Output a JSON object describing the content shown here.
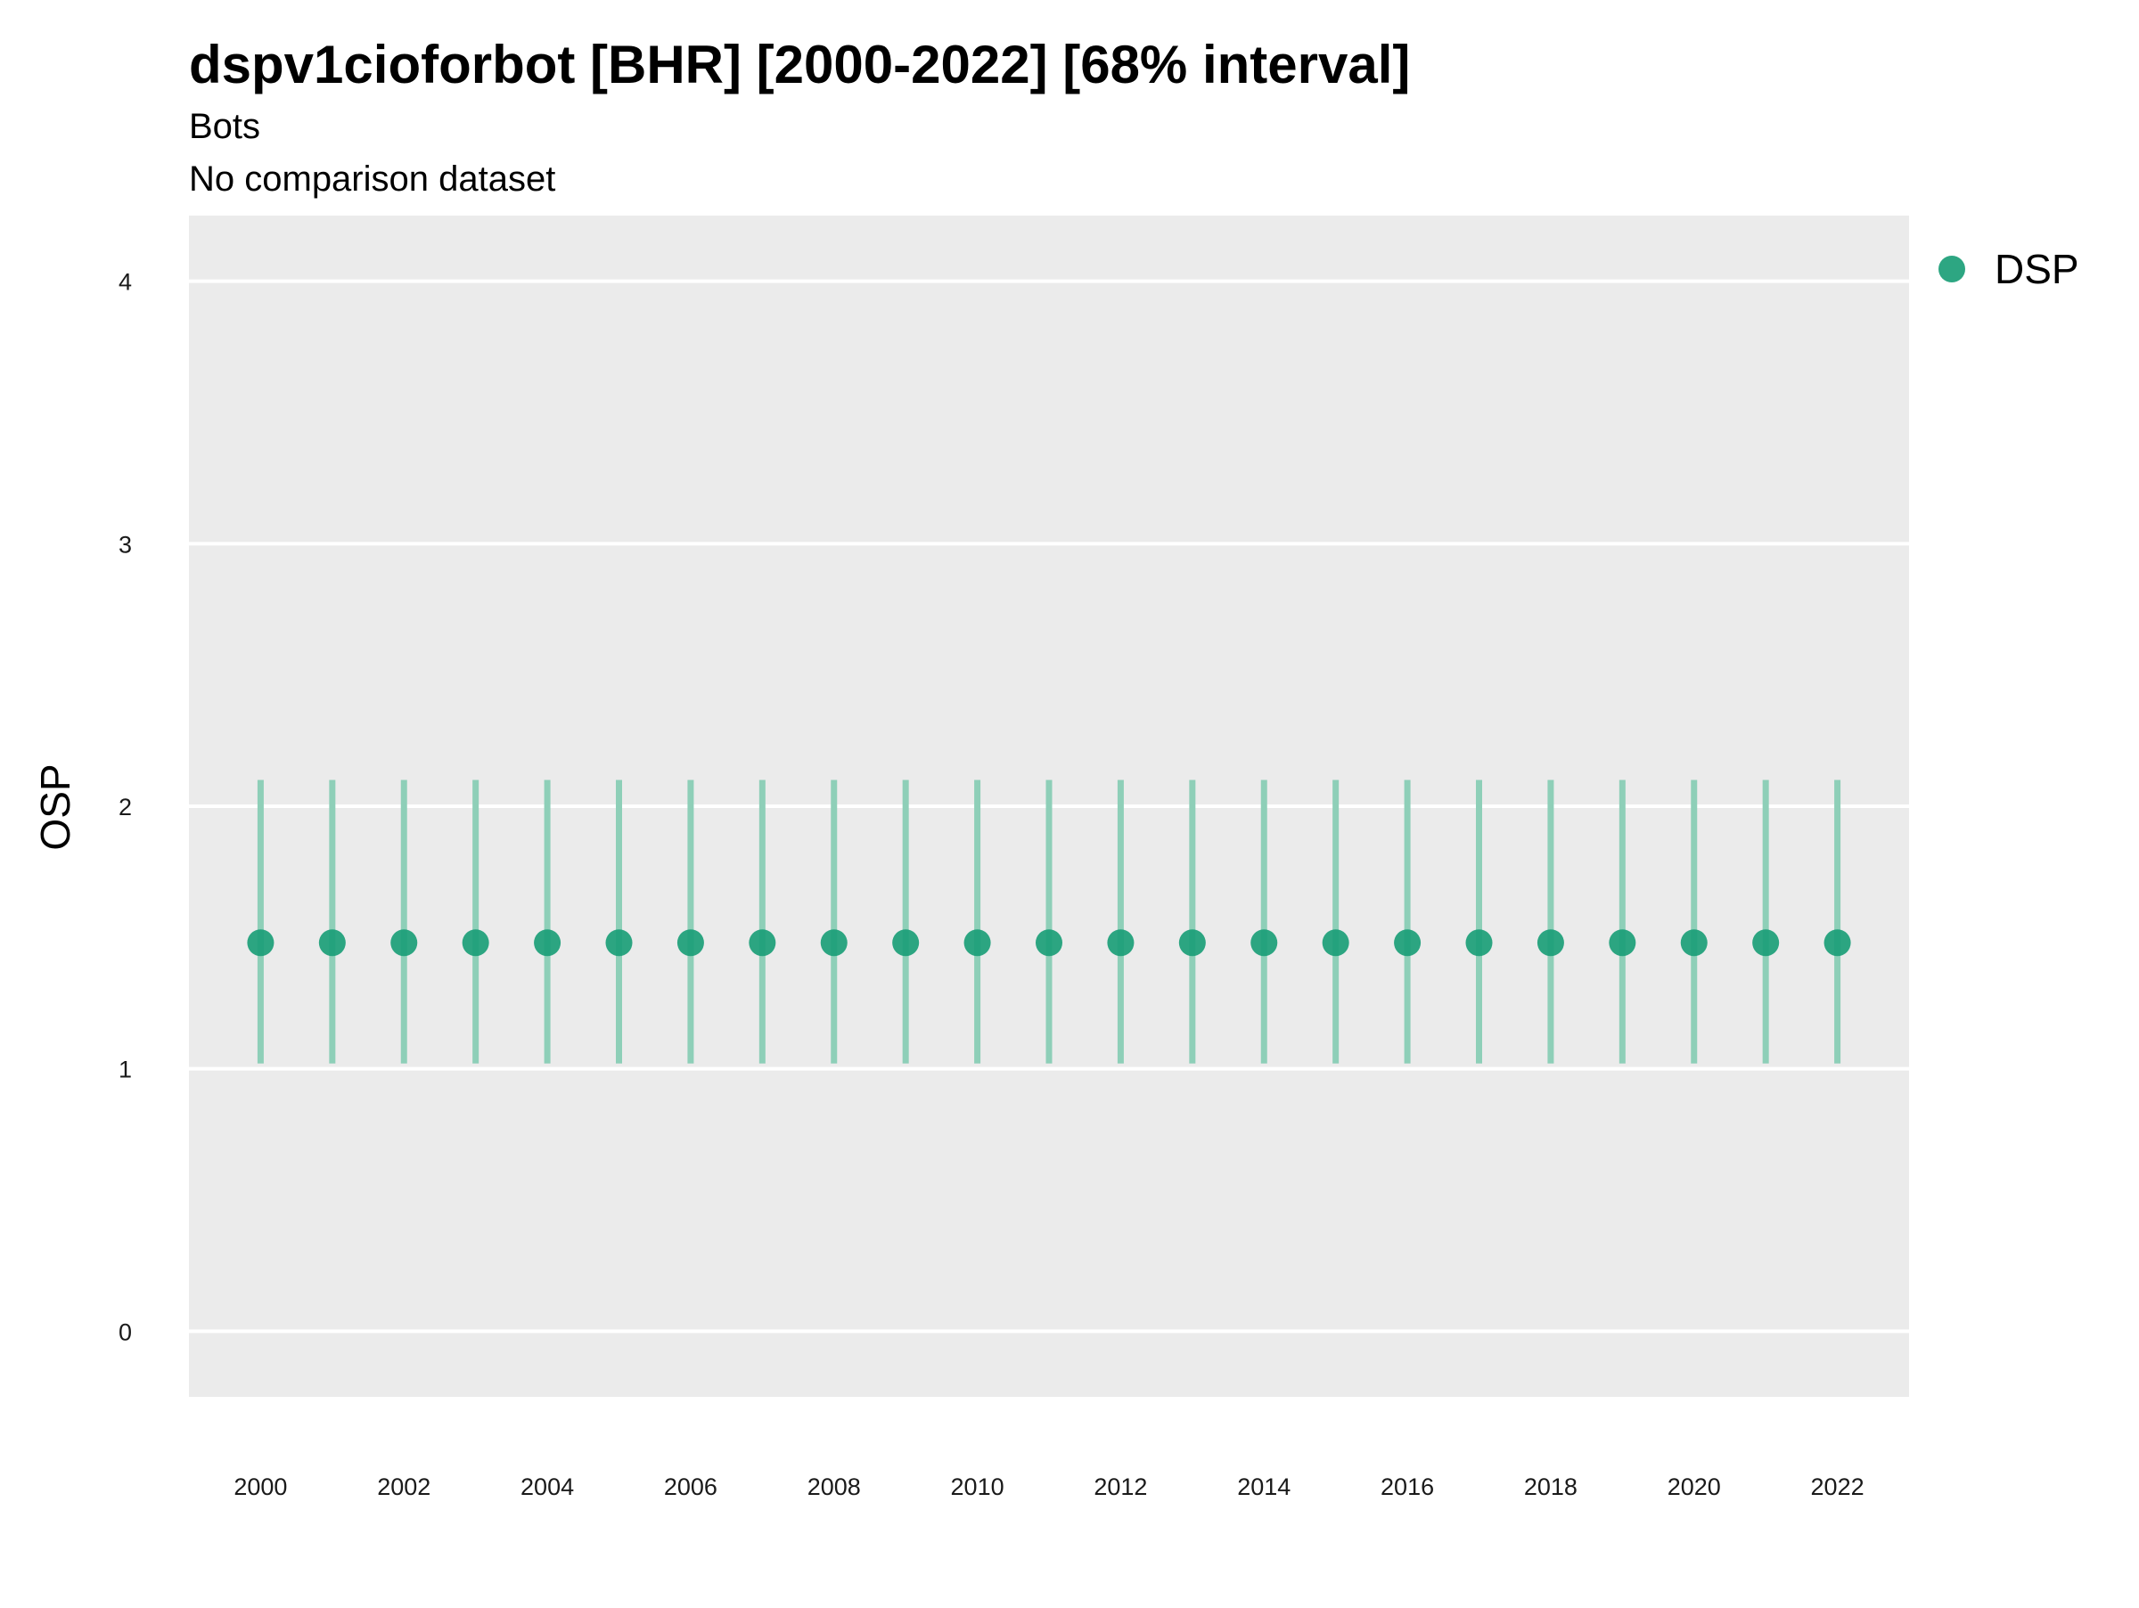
{
  "chart_data": {
    "type": "scatter",
    "title": "dspv1cioforbot [BHR] [2000-2022] [68% interval]",
    "subtitle": "Bots",
    "caption_line": "No comparison dataset",
    "xlabel": "",
    "ylabel": "OSP",
    "x_ticks": [
      2000,
      2002,
      2004,
      2006,
      2008,
      2010,
      2012,
      2014,
      2016,
      2018,
      2020,
      2022
    ],
    "y_ticks": [
      0,
      1,
      2,
      3,
      4
    ],
    "xlim": [
      1999,
      2023
    ],
    "ylim": [
      -0.25,
      4.25
    ],
    "grid": true,
    "legend_position": "right",
    "series": [
      {
        "name": "DSP",
        "color": "#1b9e77",
        "interval_color": "#8ecfb8",
        "x": [
          2000,
          2001,
          2002,
          2003,
          2004,
          2005,
          2006,
          2007,
          2008,
          2009,
          2010,
          2011,
          2012,
          2013,
          2014,
          2015,
          2016,
          2017,
          2018,
          2019,
          2020,
          2021,
          2022
        ],
        "y": [
          1.48,
          1.48,
          1.48,
          1.48,
          1.48,
          1.48,
          1.48,
          1.48,
          1.48,
          1.48,
          1.48,
          1.48,
          1.48,
          1.48,
          1.48,
          1.48,
          1.48,
          1.48,
          1.48,
          1.48,
          1.48,
          1.48,
          1.48
        ],
        "lower": [
          1.02,
          1.02,
          1.02,
          1.02,
          1.02,
          1.02,
          1.02,
          1.02,
          1.02,
          1.02,
          1.02,
          1.02,
          1.02,
          1.02,
          1.02,
          1.02,
          1.02,
          1.02,
          1.02,
          1.02,
          1.02,
          1.02,
          1.02
        ],
        "upper": [
          2.1,
          2.1,
          2.1,
          2.1,
          2.1,
          2.1,
          2.1,
          2.1,
          2.1,
          2.1,
          2.1,
          2.1,
          2.1,
          2.1,
          2.1,
          2.1,
          2.1,
          2.1,
          2.1,
          2.1,
          2.1,
          2.1,
          2.1
        ]
      }
    ],
    "colors": {
      "panel_background": "#ebebeb",
      "gridline": "#ffffff"
    }
  }
}
